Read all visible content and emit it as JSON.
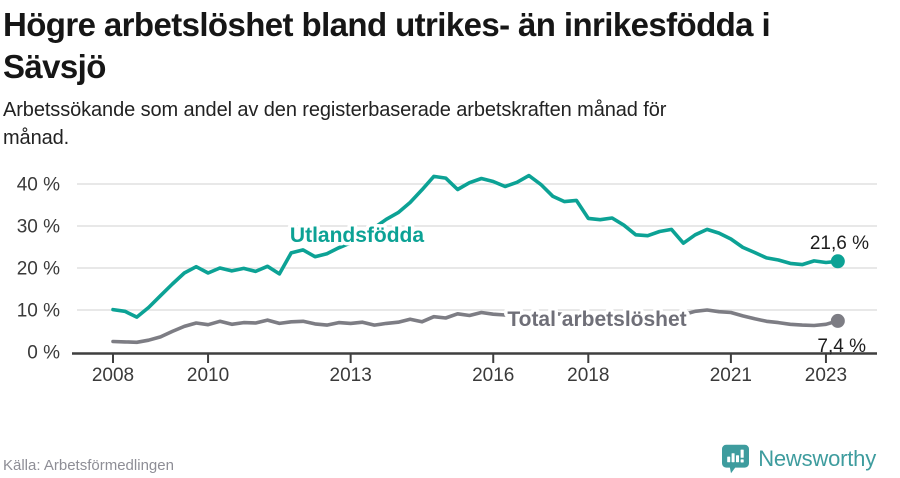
{
  "header": {
    "title_lines": [
      "Högre arbetslöshet bland utrikes- än inrikesfödda i",
      "Sävsjö"
    ],
    "subtitle_lines": [
      "Arbetssökande som andel av den registerbaserade arbetskraften månad för",
      "månad."
    ]
  },
  "footer": {
    "source": "Källa: Arbetsförmedlingen",
    "brand": "Newsworthy"
  },
  "colors": {
    "foreign_line": "#0ca295",
    "total_line": "#7d7d84",
    "total_label": "#6f6f78",
    "grid": "#d9d9d9",
    "axis": "#3f3f3f",
    "tick_label": "#3a3a3a",
    "annotation": "#1d1d1d",
    "brand_teal": "#3e9c9e"
  },
  "chart_data": {
    "type": "line",
    "title": "Högre arbetslöshet bland utrikes- än inrikesfödda i Sävsjö",
    "subtitle": "Arbetssökande som andel av den registerbaserade arbetskraften månad för månad.",
    "xlabel": "",
    "ylabel": "",
    "grid": true,
    "legend_position": "inline-labels",
    "xlim": [
      2007.8,
      2023.6
    ],
    "ylim": [
      0,
      45
    ],
    "x_ticks": [
      2008,
      2010,
      2013,
      2016,
      2018,
      2021,
      2023
    ],
    "y_ticks": [
      0,
      10,
      20,
      30,
      40
    ],
    "y_tick_labels": [
      "0 %",
      "10 %",
      "20 %",
      "30 %",
      "40 %"
    ],
    "x": [
      2008,
      2008.25,
      2008.5,
      2008.75,
      2009,
      2009.25,
      2009.5,
      2009.75,
      2010,
      2010.25,
      2010.5,
      2010.75,
      2011,
      2011.25,
      2011.5,
      2011.75,
      2012,
      2012.25,
      2012.5,
      2012.75,
      2013,
      2013.25,
      2013.5,
      2013.75,
      2014,
      2014.25,
      2014.5,
      2014.75,
      2015,
      2015.25,
      2015.5,
      2015.75,
      2016,
      2016.25,
      2016.5,
      2016.75,
      2017,
      2017.25,
      2017.5,
      2017.75,
      2018,
      2018.25,
      2018.5,
      2018.75,
      2019,
      2019.25,
      2019.5,
      2019.75,
      2020,
      2020.25,
      2020.5,
      2020.75,
      2021,
      2021.25,
      2021.5,
      2021.75,
      2022,
      2022.25,
      2022.5,
      2022.75,
      2023,
      2023.25
    ],
    "series": [
      {
        "name": "Utlandsfödda",
        "color": "#0ca295",
        "end_label": "21,6 %",
        "end_value": 21.6,
        "values": [
          10.1,
          9.7,
          8.3,
          10.6,
          13.4,
          16.2,
          18.8,
          20.3,
          18.8,
          20.0,
          19.3,
          19.9,
          19.2,
          20.4,
          18.6,
          23.6,
          24.3,
          22.7,
          23.4,
          24.8,
          26.0,
          27.6,
          29.6,
          31.6,
          33.2,
          35.6,
          38.6,
          41.8,
          41.4,
          38.7,
          40.3,
          41.3,
          40.6,
          39.4,
          40.4,
          42.0,
          39.9,
          37.1,
          35.8,
          36.1,
          31.8,
          31.5,
          31.9,
          30.2,
          27.9,
          27.7,
          28.7,
          29.2,
          25.9,
          27.9,
          29.2,
          28.3,
          26.9,
          24.9,
          23.7,
          22.4,
          21.9,
          21.1,
          20.8,
          21.7,
          21.3,
          21.6
        ]
      },
      {
        "name": "Total arbetslöshet",
        "color": "#7d7d84",
        "end_label": "7,4 %",
        "end_value": 7.4,
        "values": [
          2.5,
          2.4,
          2.3,
          2.8,
          3.6,
          4.9,
          6.1,
          6.9,
          6.5,
          7.3,
          6.6,
          7.0,
          6.9,
          7.6,
          6.8,
          7.2,
          7.3,
          6.7,
          6.4,
          7.0,
          6.8,
          7.1,
          6.4,
          6.8,
          7.1,
          7.8,
          7.2,
          8.4,
          8.1,
          9.1,
          8.7,
          9.4,
          9.0,
          8.8,
          9.3,
          9.1,
          8.9,
          9.2,
          8.9,
          8.6,
          8.4,
          8.2,
          8.5,
          8.3,
          8.0,
          8.1,
          8.3,
          8.6,
          8.9,
          9.7,
          10.0,
          9.6,
          9.4,
          8.6,
          7.9,
          7.3,
          7.0,
          6.6,
          6.4,
          6.3,
          6.6,
          7.4
        ]
      }
    ]
  }
}
